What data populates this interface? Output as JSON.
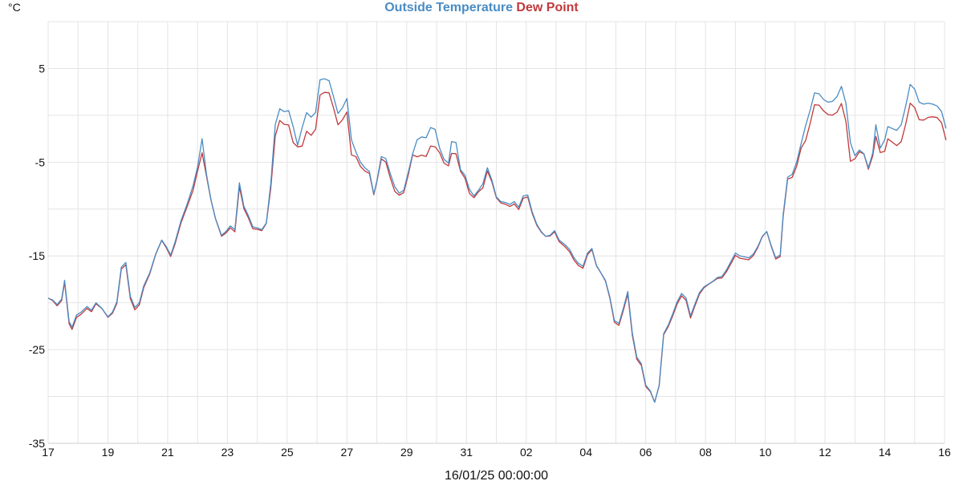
{
  "chart_data": {
    "type": "line",
    "title_parts": [
      {
        "text": "Outside Temperature",
        "color": "#4a8cc4"
      },
      {
        "text": "Dew Point",
        "color": "#c0393b"
      }
    ],
    "y_unit": "°C",
    "xlabel": "16/01/25 00:00:00",
    "ylabel": "",
    "ylim": [
      -35,
      10
    ],
    "yticks": [
      5,
      -5,
      -15,
      -25,
      -35
    ],
    "xlim": [
      0,
      30
    ],
    "xticks": [
      {
        "x": 0,
        "label": "17"
      },
      {
        "x": 2,
        "label": "19"
      },
      {
        "x": 4,
        "label": "21"
      },
      {
        "x": 6,
        "label": "23"
      },
      {
        "x": 8,
        "label": "25"
      },
      {
        "x": 10,
        "label": "27"
      },
      {
        "x": 12,
        "label": "29"
      },
      {
        "x": 14,
        "label": "31"
      },
      {
        "x": 16,
        "label": "02"
      },
      {
        "x": 18,
        "label": "04"
      },
      {
        "x": 20,
        "label": "06"
      },
      {
        "x": 22,
        "label": "08"
      },
      {
        "x": 24,
        "label": "10"
      },
      {
        "x": 26,
        "label": "12"
      },
      {
        "x": 28,
        "label": "14"
      },
      {
        "x": 30,
        "label": "16"
      }
    ],
    "grid": true,
    "x_unit_note": "days from 17/12",
    "series": [
      {
        "name": "Outside Temperature",
        "color": "#4a8cc4",
        "points": [
          [
            0.0,
            -19.5
          ],
          [
            0.15,
            -19.7
          ],
          [
            0.3,
            -20.2
          ],
          [
            0.45,
            -19.6
          ],
          [
            0.55,
            -17.6
          ],
          [
            0.7,
            -22.0
          ],
          [
            0.8,
            -22.6
          ],
          [
            0.95,
            -21.3
          ],
          [
            1.1,
            -21.0
          ],
          [
            1.3,
            -20.4
          ],
          [
            1.45,
            -20.8
          ],
          [
            1.6,
            -20.0
          ],
          [
            1.8,
            -20.6
          ],
          [
            2.0,
            -21.5
          ],
          [
            2.15,
            -21.0
          ],
          [
            2.3,
            -19.9
          ],
          [
            2.45,
            -16.2
          ],
          [
            2.6,
            -15.7
          ],
          [
            2.75,
            -19.3
          ],
          [
            2.9,
            -20.5
          ],
          [
            3.05,
            -20.0
          ],
          [
            3.2,
            -18.2
          ],
          [
            3.4,
            -16.8
          ],
          [
            3.6,
            -14.8
          ],
          [
            3.8,
            -13.3
          ],
          [
            3.95,
            -14.0
          ],
          [
            4.1,
            -14.9
          ],
          [
            4.25,
            -13.5
          ],
          [
            4.45,
            -11.2
          ],
          [
            4.65,
            -9.5
          ],
          [
            4.85,
            -7.5
          ],
          [
            5.0,
            -5.5
          ],
          [
            5.15,
            -2.5
          ],
          [
            5.3,
            -6.3
          ],
          [
            5.45,
            -9.0
          ],
          [
            5.6,
            -11.0
          ],
          [
            5.8,
            -12.8
          ],
          [
            5.95,
            -12.4
          ],
          [
            6.1,
            -11.8
          ],
          [
            6.25,
            -12.2
          ],
          [
            6.4,
            -7.2
          ],
          [
            6.55,
            -9.7
          ],
          [
            6.7,
            -10.7
          ],
          [
            6.85,
            -11.9
          ],
          [
            7.0,
            -12.0
          ],
          [
            7.15,
            -12.2
          ],
          [
            7.3,
            -11.5
          ],
          [
            7.45,
            -7.3
          ],
          [
            7.6,
            -1.0
          ],
          [
            7.75,
            0.7
          ],
          [
            7.9,
            0.4
          ],
          [
            8.05,
            0.5
          ],
          [
            8.2,
            -1.2
          ],
          [
            8.35,
            -3.2
          ],
          [
            8.5,
            -1.3
          ],
          [
            8.65,
            0.3
          ],
          [
            8.8,
            -0.2
          ],
          [
            8.95,
            0.3
          ],
          [
            9.1,
            3.8
          ],
          [
            9.25,
            3.9
          ],
          [
            9.4,
            3.7
          ],
          [
            9.55,
            2.0
          ],
          [
            9.7,
            0.2
          ],
          [
            9.85,
            0.8
          ],
          [
            10.0,
            1.8
          ],
          [
            10.15,
            -2.6
          ],
          [
            10.3,
            -3.9
          ],
          [
            10.45,
            -5.0
          ],
          [
            10.6,
            -5.6
          ],
          [
            10.75,
            -6.0
          ],
          [
            10.9,
            -8.4
          ],
          [
            11.0,
            -7.0
          ],
          [
            11.15,
            -4.4
          ],
          [
            11.3,
            -4.6
          ],
          [
            11.45,
            -6.2
          ],
          [
            11.6,
            -7.6
          ],
          [
            11.75,
            -8.3
          ],
          [
            11.9,
            -8.0
          ],
          [
            12.05,
            -6.1
          ],
          [
            12.2,
            -4.1
          ],
          [
            12.35,
            -2.6
          ],
          [
            12.5,
            -2.3
          ],
          [
            12.65,
            -2.4
          ],
          [
            12.8,
            -1.3
          ],
          [
            12.95,
            -1.5
          ],
          [
            13.1,
            -3.5
          ],
          [
            13.25,
            -4.7
          ],
          [
            13.4,
            -5.1
          ],
          [
            13.5,
            -2.8
          ],
          [
            13.65,
            -2.9
          ],
          [
            13.8,
            -5.8
          ],
          [
            13.95,
            -6.4
          ],
          [
            14.1,
            -7.9
          ],
          [
            14.25,
            -8.6
          ],
          [
            14.4,
            -8.0
          ],
          [
            14.55,
            -7.3
          ],
          [
            14.7,
            -5.6
          ],
          [
            14.85,
            -6.9
          ],
          [
            15.0,
            -8.7
          ],
          [
            15.15,
            -9.2
          ],
          [
            15.3,
            -9.3
          ],
          [
            15.45,
            -9.5
          ],
          [
            15.6,
            -9.2
          ],
          [
            15.75,
            -9.8
          ],
          [
            15.9,
            -8.6
          ],
          [
            16.05,
            -8.5
          ],
          [
            16.2,
            -10.3
          ],
          [
            16.35,
            -11.6
          ],
          [
            16.5,
            -12.4
          ],
          [
            16.65,
            -12.9
          ],
          [
            16.8,
            -12.8
          ],
          [
            16.95,
            -12.3
          ],
          [
            17.1,
            -13.3
          ],
          [
            17.3,
            -13.8
          ],
          [
            17.45,
            -14.3
          ],
          [
            17.6,
            -15.2
          ],
          [
            17.75,
            -15.8
          ],
          [
            17.9,
            -16.1
          ],
          [
            18.05,
            -14.7
          ],
          [
            18.2,
            -14.2
          ],
          [
            18.35,
            -16.0
          ],
          [
            18.5,
            -16.8
          ],
          [
            18.65,
            -17.6
          ],
          [
            18.8,
            -19.4
          ],
          [
            18.95,
            -21.9
          ],
          [
            19.1,
            -22.2
          ],
          [
            19.25,
            -20.6
          ],
          [
            19.4,
            -18.8
          ],
          [
            19.55,
            -23.2
          ],
          [
            19.7,
            -25.8
          ],
          [
            19.85,
            -26.5
          ],
          [
            20.0,
            -28.8
          ],
          [
            20.15,
            -29.4
          ],
          [
            20.3,
            -30.6
          ],
          [
            20.45,
            -28.8
          ],
          [
            20.6,
            -23.3
          ],
          [
            20.75,
            -22.4
          ],
          [
            20.9,
            -21.2
          ],
          [
            21.05,
            -19.9
          ],
          [
            21.2,
            -19.0
          ],
          [
            21.35,
            -19.5
          ],
          [
            21.5,
            -21.4
          ],
          [
            21.65,
            -20.1
          ],
          [
            21.8,
            -18.9
          ],
          [
            21.95,
            -18.3
          ],
          [
            22.1,
            -18.0
          ],
          [
            22.25,
            -17.7
          ],
          [
            22.4,
            -17.3
          ],
          [
            22.55,
            -17.2
          ],
          [
            22.7,
            -16.5
          ],
          [
            22.85,
            -15.6
          ],
          [
            23.0,
            -14.7
          ],
          [
            23.15,
            -15.0
          ],
          [
            23.3,
            -15.1
          ],
          [
            23.45,
            -15.2
          ],
          [
            23.6,
            -14.8
          ],
          [
            23.75,
            -14.0
          ],
          [
            23.9,
            -12.9
          ],
          [
            24.05,
            -12.4
          ],
          [
            24.2,
            -13.9
          ],
          [
            24.35,
            -15.2
          ],
          [
            24.5,
            -14.9
          ],
          [
            24.6,
            -10.6
          ],
          [
            24.75,
            -6.6
          ],
          [
            24.9,
            -6.3
          ],
          [
            25.05,
            -5.0
          ],
          [
            25.2,
            -3.0
          ],
          [
            25.35,
            -1.1
          ],
          [
            25.5,
            0.5
          ],
          [
            25.65,
            2.4
          ],
          [
            25.8,
            2.3
          ],
          [
            25.95,
            1.7
          ],
          [
            26.1,
            1.4
          ],
          [
            26.25,
            1.5
          ],
          [
            26.4,
            2.0
          ],
          [
            26.55,
            3.1
          ],
          [
            26.7,
            1.3
          ],
          [
            26.85,
            -2.9
          ],
          [
            27.0,
            -4.3
          ],
          [
            27.15,
            -3.7
          ],
          [
            27.3,
            -4.1
          ],
          [
            27.45,
            -5.6
          ],
          [
            27.6,
            -4.0
          ],
          [
            27.7,
            -1.0
          ],
          [
            27.85,
            -3.5
          ],
          [
            28.0,
            -2.6
          ],
          [
            28.1,
            -1.2
          ],
          [
            28.25,
            -1.4
          ],
          [
            28.4,
            -1.6
          ],
          [
            28.55,
            -1.0
          ],
          [
            28.7,
            1.0
          ],
          [
            28.85,
            3.3
          ],
          [
            29.0,
            2.8
          ],
          [
            29.15,
            1.4
          ],
          [
            29.3,
            1.2
          ],
          [
            29.45,
            1.3
          ],
          [
            29.6,
            1.2
          ],
          [
            29.75,
            1.0
          ],
          [
            29.9,
            0.4
          ],
          [
            30.05,
            -1.4
          ]
        ]
      },
      {
        "name": "Dew Point",
        "color": "#c0393b",
        "points": []
      }
    ]
  }
}
